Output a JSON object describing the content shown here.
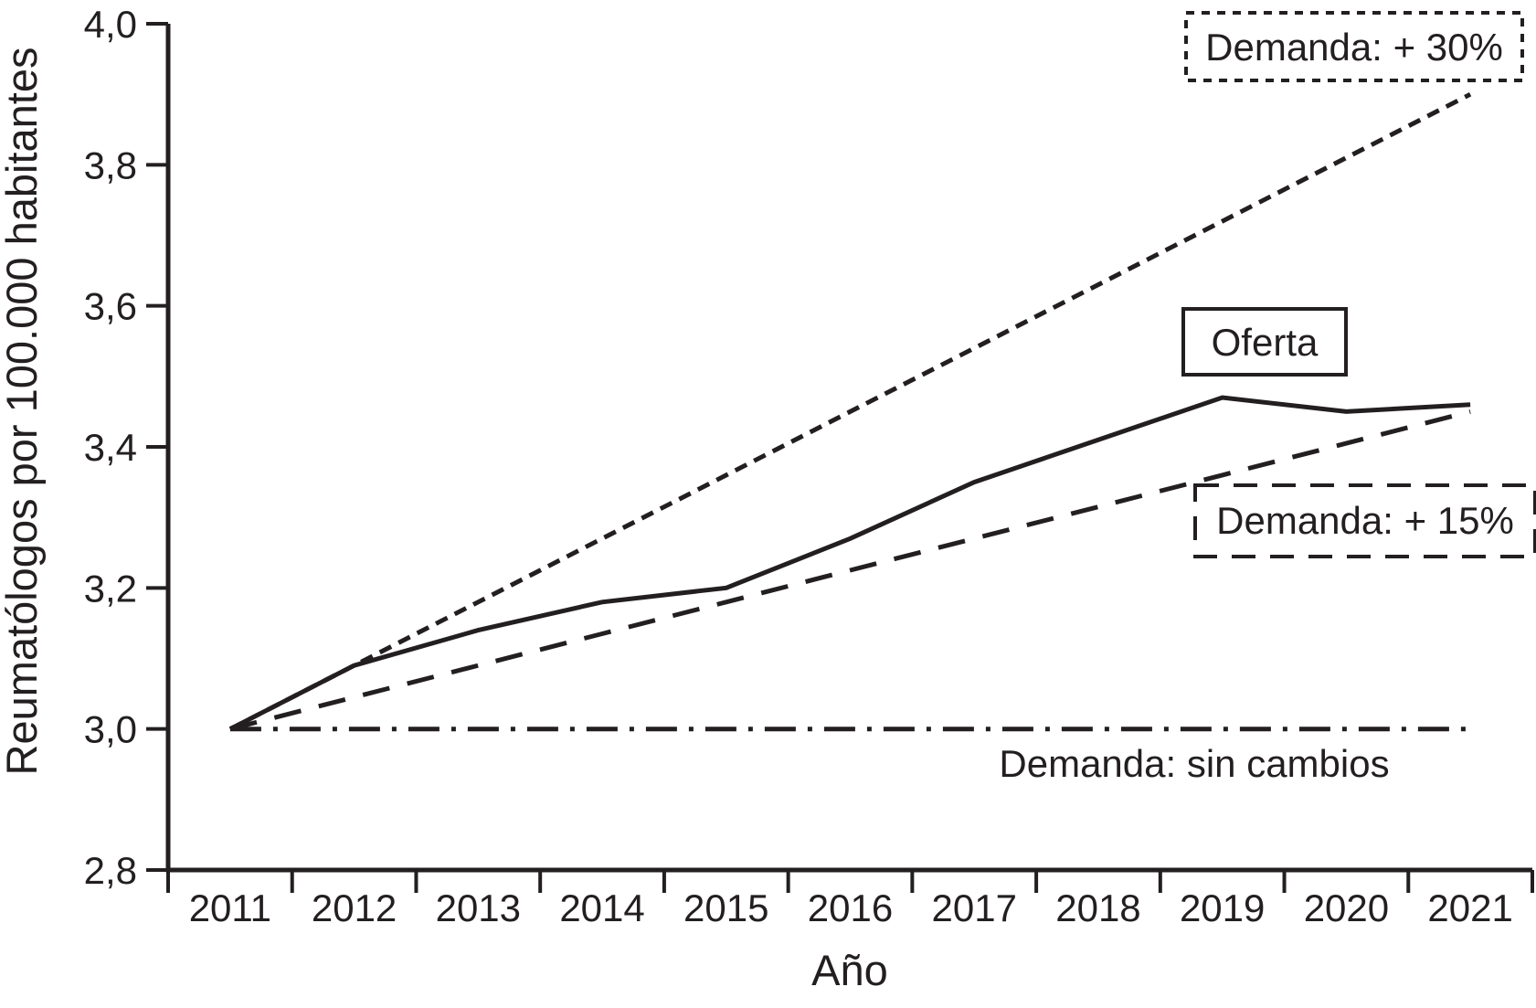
{
  "colors": {
    "foreground": "#231f20",
    "background": "#ffffff"
  },
  "chart_data": {
    "type": "line",
    "title": "",
    "xlabel": "Año",
    "ylabel": "Reumatólogos por 100.000 habitantes",
    "ylim": [
      2.8,
      4.0
    ],
    "grid": false,
    "x_tick_labels": [
      "2011",
      "2012",
      "2013",
      "2014",
      "2015",
      "2016",
      "2017",
      "2018",
      "2019",
      "2020",
      "2021"
    ],
    "y_ticks": [
      {
        "value": 2.8,
        "label": "2,8"
      },
      {
        "value": 3.0,
        "label": "3,0"
      },
      {
        "value": 3.2,
        "label": "3,2"
      },
      {
        "value": 3.4,
        "label": "3,4"
      },
      {
        "value": 3.6,
        "label": "3,6"
      },
      {
        "value": 3.8,
        "label": "3,8"
      },
      {
        "value": 4.0,
        "label": "4,0"
      }
    ],
    "series": [
      {
        "name": "Demanda: + 30%",
        "style": "densely-dashed",
        "values": [
          3.0,
          3.09,
          3.18,
          3.27,
          3.36,
          3.45,
          3.54,
          3.63,
          3.72,
          3.81,
          3.9
        ]
      },
      {
        "name": "Oferta",
        "style": "solid",
        "values": [
          3.0,
          3.09,
          3.14,
          3.18,
          3.2,
          3.27,
          3.35,
          3.41,
          3.47,
          3.45,
          3.46
        ]
      },
      {
        "name": "Demanda: + 15%",
        "style": "long-dashed",
        "values": [
          3.0,
          3.045,
          3.09,
          3.135,
          3.18,
          3.225,
          3.27,
          3.315,
          3.36,
          3.405,
          3.45
        ]
      },
      {
        "name": "Demanda: sin cambios",
        "style": "dash-dot",
        "values": [
          3.0,
          3.0,
          3.0,
          3.0,
          3.0,
          3.0,
          3.0,
          3.0,
          3.0,
          3.0,
          3.0
        ]
      }
    ],
    "annotations": [
      {
        "text": "Demanda: + 30%",
        "box_style": "dotted"
      },
      {
        "text": "Oferta",
        "box_style": "solid"
      },
      {
        "text": "Demanda: + 15%",
        "box_style": "dashed"
      },
      {
        "text": "Demanda: sin cambios",
        "box_style": "none"
      }
    ]
  }
}
